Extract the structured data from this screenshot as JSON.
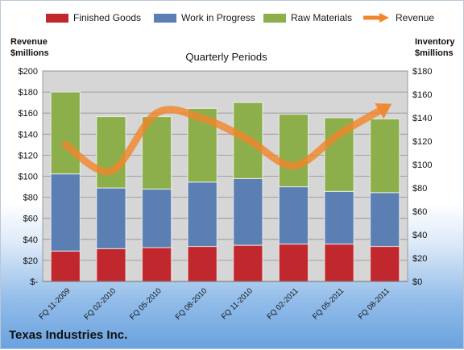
{
  "chart_data": {
    "type": "bar",
    "stacked": true,
    "title": "Quarterly Periods",
    "ylabel_left": [
      "Revenue",
      "$millions"
    ],
    "ylabel_right": [
      "Inventory",
      "$millions"
    ],
    "categories": [
      "FQ 11-2009",
      "FQ 02-2010",
      "FQ 05-2010",
      "FQ 08-2010",
      "FQ 11-2010",
      "FQ 02-2011",
      "FQ 05-2011",
      "FQ 08-2011"
    ],
    "left_axis": {
      "min": 0,
      "max": 200,
      "step": 20,
      "tick_labels": [
        "$-",
        "$20",
        "$40",
        "$60",
        "$80",
        "$100",
        "$120",
        "$140",
        "$160",
        "$180",
        "$200"
      ]
    },
    "right_axis": {
      "min": 0,
      "max": 180,
      "step": 20,
      "tick_labels": [
        "$0",
        "$20",
        "$40",
        "$60",
        "$80",
        "$100",
        "$120",
        "$140",
        "$160",
        "$180"
      ]
    },
    "grid": true,
    "legend_position": "top",
    "series": [
      {
        "name": "Finished Goods",
        "axis": "right",
        "color": "#c0282e",
        "values": [
          26,
          28,
          29,
          30,
          31,
          32,
          32,
          30
        ]
      },
      {
        "name": "Work in Progress",
        "axis": "right",
        "color": "#5b7fb3",
        "values": [
          66,
          52,
          50,
          55,
          57,
          49,
          45,
          46
        ]
      },
      {
        "name": "Raw Materials",
        "axis": "right",
        "color": "#8caf4c",
        "values": [
          70,
          61,
          62,
          63,
          65,
          62,
          63,
          63
        ]
      },
      {
        "name": "Revenue",
        "axis": "left",
        "type": "line",
        "color": "#f0862c",
        "values": [
          130,
          105,
          160,
          155,
          135,
          110,
          140,
          165
        ]
      }
    ]
  },
  "company": "Texas Industries Inc."
}
